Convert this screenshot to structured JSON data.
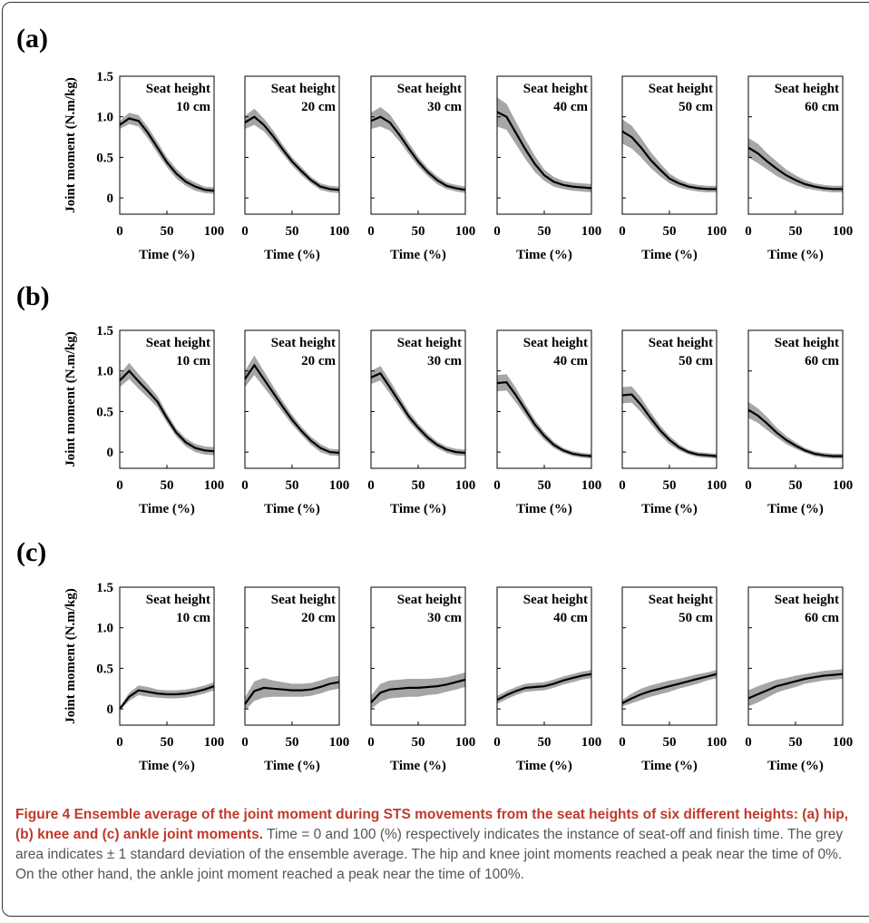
{
  "figure": {
    "panels": [
      {
        "label": "(a)",
        "ylabel": "Joint moment (N.m/kg)"
      },
      {
        "label": "(b)",
        "ylabel": "Joint moment (N.m/kg)"
      },
      {
        "label": "(c)",
        "ylabel": "Joint moment (N.m/kg)"
      }
    ],
    "caption": {
      "title": "Figure 4 Ensemble average of the joint moment during STS movements from the seat heights of six different heights: (a) hip, (b) knee and (c) ankle joint moments.",
      "body": "Time = 0 and 100 (%) respectively indicates the instance of seat-off and finish time. The grey area indicates ± 1 standard deviation of the ensemble average. The hip and knee joint moments reached a peak near the time of 0%. On the other hand, the ankle joint moment reached a peak near the time of 100%."
    }
  },
  "chart_data": [
    {
      "type": "area",
      "panel": "(a)",
      "xlabel": "Time (%)",
      "ylabel": "Joint moment (N.m/kg)",
      "xlim": [
        0,
        100
      ],
      "ylim": [
        -0.2,
        1.5
      ],
      "xticks": [
        0,
        50,
        100
      ],
      "yticks": [
        0,
        0.5,
        1.0,
        1.5
      ],
      "ytick_labels": [
        "0",
        "0.5",
        "1.0",
        "1.5"
      ],
      "x": [
        0,
        10,
        20,
        30,
        40,
        50,
        60,
        70,
        80,
        90,
        100
      ],
      "series": [
        {
          "name": "Seat height 10 cm",
          "mean": [
            0.9,
            0.98,
            0.95,
            0.8,
            0.62,
            0.44,
            0.3,
            0.2,
            0.14,
            0.1,
            0.09
          ],
          "sd": [
            0.05,
            0.07,
            0.07,
            0.07,
            0.07,
            0.06,
            0.06,
            0.05,
            0.05,
            0.04,
            0.04
          ]
        },
        {
          "name": "Seat height 20 cm",
          "mean": [
            0.93,
            1.0,
            0.9,
            0.76,
            0.6,
            0.45,
            0.33,
            0.22,
            0.14,
            0.11,
            0.1
          ],
          "sd": [
            0.08,
            0.1,
            0.08,
            0.07,
            0.06,
            0.05,
            0.05,
            0.04,
            0.04,
            0.04,
            0.04
          ]
        },
        {
          "name": "Seat height 30 cm",
          "mean": [
            0.95,
            1.0,
            0.93,
            0.78,
            0.61,
            0.45,
            0.32,
            0.22,
            0.15,
            0.12,
            0.1
          ],
          "sd": [
            0.1,
            0.12,
            0.1,
            0.08,
            0.07,
            0.06,
            0.05,
            0.05,
            0.04,
            0.04,
            0.04
          ]
        },
        {
          "name": "Seat height 40 cm",
          "mean": [
            1.06,
            1.0,
            0.8,
            0.6,
            0.42,
            0.28,
            0.2,
            0.16,
            0.14,
            0.13,
            0.12
          ],
          "sd": [
            0.18,
            0.16,
            0.14,
            0.12,
            0.1,
            0.07,
            0.06,
            0.05,
            0.05,
            0.05,
            0.05
          ]
        },
        {
          "name": "Seat height 50 cm",
          "mean": [
            0.82,
            0.75,
            0.62,
            0.47,
            0.35,
            0.24,
            0.18,
            0.14,
            0.12,
            0.11,
            0.11
          ],
          "sd": [
            0.15,
            0.14,
            0.12,
            0.1,
            0.08,
            0.06,
            0.05,
            0.04,
            0.04,
            0.04,
            0.04
          ]
        },
        {
          "name": "Seat height 60 cm",
          "mean": [
            0.62,
            0.55,
            0.45,
            0.36,
            0.28,
            0.22,
            0.17,
            0.14,
            0.12,
            0.11,
            0.11
          ],
          "sd": [
            0.12,
            0.12,
            0.1,
            0.09,
            0.07,
            0.06,
            0.05,
            0.04,
            0.04,
            0.04,
            0.04
          ]
        }
      ]
    },
    {
      "type": "area",
      "panel": "(b)",
      "xlabel": "Time (%)",
      "ylabel": "Joint moment (N.m/kg)",
      "xlim": [
        0,
        100
      ],
      "ylim": [
        -0.2,
        1.5
      ],
      "xticks": [
        0,
        50,
        100
      ],
      "yticks": [
        0,
        0.5,
        1.0,
        1.5
      ],
      "ytick_labels": [
        "0",
        "0.5",
        "1.0",
        "1.5"
      ],
      "x": [
        0,
        10,
        20,
        30,
        40,
        50,
        60,
        70,
        80,
        90,
        100
      ],
      "series": [
        {
          "name": "Seat height 10 cm",
          "mean": [
            0.88,
            1.0,
            0.87,
            0.75,
            0.62,
            0.42,
            0.24,
            0.12,
            0.05,
            0.02,
            0.01
          ],
          "sd": [
            0.08,
            0.1,
            0.09,
            0.08,
            0.07,
            0.06,
            0.05,
            0.05,
            0.05,
            0.05,
            0.05
          ]
        },
        {
          "name": "Seat height 20 cm",
          "mean": [
            0.9,
            1.07,
            0.9,
            0.73,
            0.56,
            0.4,
            0.26,
            0.14,
            0.05,
            0.0,
            -0.01
          ],
          "sd": [
            0.1,
            0.12,
            0.1,
            0.08,
            0.07,
            0.06,
            0.05,
            0.05,
            0.05,
            0.04,
            0.04
          ]
        },
        {
          "name": "Seat height 30 cm",
          "mean": [
            0.92,
            0.97,
            0.8,
            0.62,
            0.44,
            0.3,
            0.18,
            0.09,
            0.03,
            0.0,
            -0.01
          ],
          "sd": [
            0.08,
            0.09,
            0.08,
            0.07,
            0.06,
            0.05,
            0.05,
            0.04,
            0.04,
            0.04,
            0.04
          ]
        },
        {
          "name": "Seat height 40 cm",
          "mean": [
            0.85,
            0.86,
            0.7,
            0.52,
            0.34,
            0.2,
            0.09,
            0.02,
            -0.02,
            -0.04,
            -0.05
          ],
          "sd": [
            0.1,
            0.1,
            0.09,
            0.07,
            0.06,
            0.05,
            0.04,
            0.03,
            0.03,
            0.03,
            0.03
          ]
        },
        {
          "name": "Seat height 50 cm",
          "mean": [
            0.7,
            0.71,
            0.58,
            0.42,
            0.27,
            0.15,
            0.06,
            0.0,
            -0.03,
            -0.04,
            -0.05
          ],
          "sd": [
            0.1,
            0.1,
            0.09,
            0.07,
            0.06,
            0.05,
            0.04,
            0.03,
            0.03,
            0.03,
            0.03
          ]
        },
        {
          "name": "Seat height 60 cm",
          "mean": [
            0.52,
            0.45,
            0.35,
            0.24,
            0.15,
            0.08,
            0.02,
            -0.02,
            -0.04,
            -0.05,
            -0.05
          ],
          "sd": [
            0.1,
            0.09,
            0.08,
            0.06,
            0.05,
            0.04,
            0.03,
            0.03,
            0.03,
            0.03,
            0.03
          ]
        }
      ]
    },
    {
      "type": "area",
      "panel": "(c)",
      "xlabel": "Time (%)",
      "ylabel": "Joint moment (N.m/kg)",
      "xlim": [
        0,
        100
      ],
      "ylim": [
        -0.2,
        1.5
      ],
      "xticks": [
        0,
        50,
        100
      ],
      "yticks": [
        0,
        0.5,
        1.0,
        1.5
      ],
      "ytick_labels": [
        "0",
        "0.5",
        "1.0",
        "1.5"
      ],
      "x": [
        0,
        10,
        20,
        30,
        40,
        50,
        60,
        70,
        80,
        90,
        100
      ],
      "series": [
        {
          "name": "Seat height 10 cm",
          "mean": [
            0.0,
            0.15,
            0.23,
            0.21,
            0.19,
            0.18,
            0.18,
            0.19,
            0.21,
            0.24,
            0.28
          ],
          "sd": [
            0.02,
            0.05,
            0.06,
            0.06,
            0.05,
            0.05,
            0.05,
            0.05,
            0.05,
            0.05,
            0.05
          ]
        },
        {
          "name": "Seat height 20 cm",
          "mean": [
            0.06,
            0.22,
            0.26,
            0.25,
            0.24,
            0.23,
            0.23,
            0.24,
            0.27,
            0.31,
            0.33
          ],
          "sd": [
            0.08,
            0.12,
            0.12,
            0.1,
            0.09,
            0.08,
            0.08,
            0.08,
            0.08,
            0.08,
            0.08
          ]
        },
        {
          "name": "Seat height 30 cm",
          "mean": [
            0.08,
            0.2,
            0.24,
            0.25,
            0.26,
            0.26,
            0.27,
            0.28,
            0.3,
            0.33,
            0.36
          ],
          "sd": [
            0.08,
            0.11,
            0.11,
            0.11,
            0.11,
            0.11,
            0.1,
            0.1,
            0.09,
            0.09,
            0.09
          ]
        },
        {
          "name": "Seat height 40 cm",
          "mean": [
            0.11,
            0.17,
            0.22,
            0.26,
            0.27,
            0.28,
            0.31,
            0.35,
            0.38,
            0.41,
            0.43
          ],
          "sd": [
            0.05,
            0.05,
            0.05,
            0.05,
            0.05,
            0.05,
            0.05,
            0.05,
            0.05,
            0.05,
            0.05
          ]
        },
        {
          "name": "Seat height 50 cm",
          "mean": [
            0.07,
            0.13,
            0.18,
            0.22,
            0.25,
            0.28,
            0.31,
            0.34,
            0.37,
            0.4,
            0.43
          ],
          "sd": [
            0.04,
            0.06,
            0.07,
            0.07,
            0.07,
            0.07,
            0.06,
            0.06,
            0.06,
            0.05,
            0.05
          ]
        },
        {
          "name": "Seat height 60 cm",
          "mean": [
            0.13,
            0.18,
            0.23,
            0.28,
            0.31,
            0.34,
            0.37,
            0.39,
            0.41,
            0.42,
            0.43
          ],
          "sd": [
            0.1,
            0.1,
            0.09,
            0.08,
            0.07,
            0.07,
            0.06,
            0.06,
            0.06,
            0.06,
            0.06
          ]
        }
      ]
    }
  ]
}
